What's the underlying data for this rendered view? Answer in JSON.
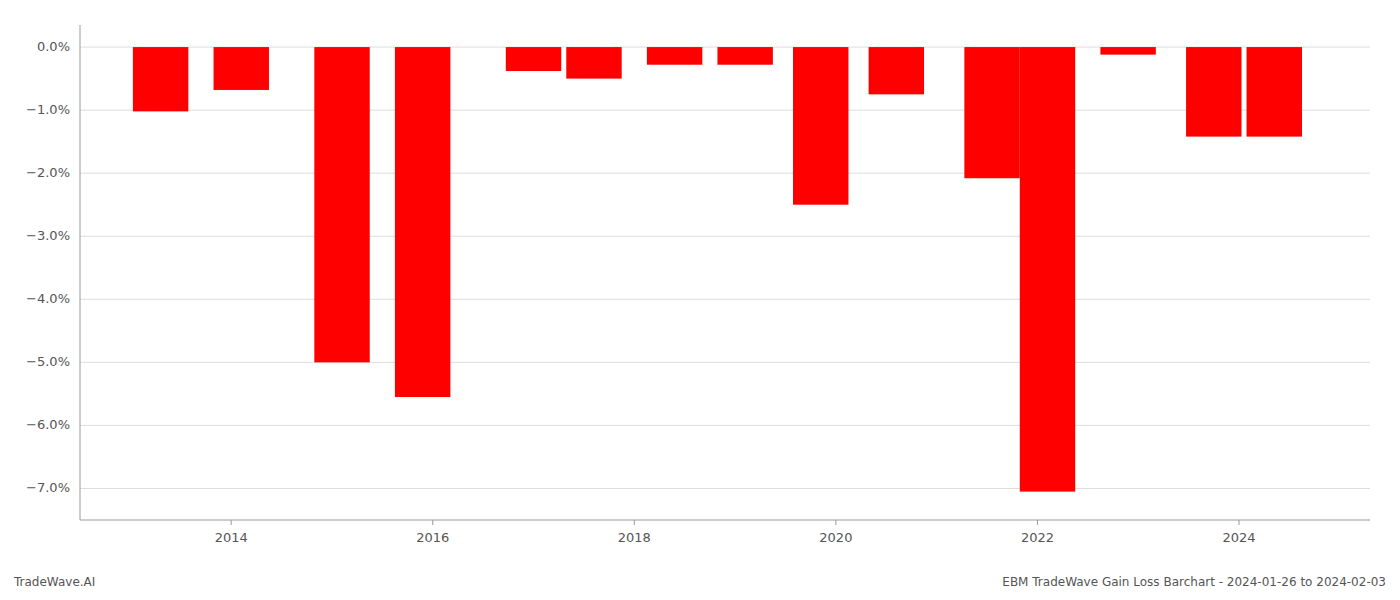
{
  "chart_data": {
    "type": "bar",
    "x": [
      2013.3,
      2014.1,
      2015.1,
      2015.9,
      2017.0,
      2017.6,
      2018.4,
      2019.1,
      2019.85,
      2020.6,
      2021.55,
      2022.1,
      2022.9,
      2023.75,
      2024.35
    ],
    "values": [
      -1.02,
      -0.68,
      -5.0,
      -5.55,
      -0.38,
      -0.5,
      -0.28,
      -0.28,
      -2.5,
      -0.75,
      -2.08,
      -7.05,
      -0.12,
      -1.42,
      -1.42
    ],
    "color": "#ff0000",
    "xlim": [
      2012.5,
      2025.3
    ],
    "ylim": [
      -7.5,
      0.35
    ],
    "xticks": [
      2014,
      2016,
      2018,
      2020,
      2022,
      2024
    ],
    "yticks": [
      {
        "value": 0.0,
        "label": "0.0%"
      },
      {
        "value": -1.0,
        "label": "−1.0%"
      },
      {
        "value": -2.0,
        "label": "−2.0%"
      },
      {
        "value": -3.0,
        "label": "−3.0%"
      },
      {
        "value": -4.0,
        "label": "−4.0%"
      },
      {
        "value": -5.0,
        "label": "−5.0%"
      },
      {
        "value": -6.0,
        "label": "−6.0%"
      },
      {
        "value": -7.0,
        "label": "−7.0%"
      }
    ],
    "grid": true,
    "annotations": [
      "TradeWave.AI",
      "EBM TradeWave Gain Loss Barchart - 2024-01-26 to 2024-02-03"
    ]
  }
}
